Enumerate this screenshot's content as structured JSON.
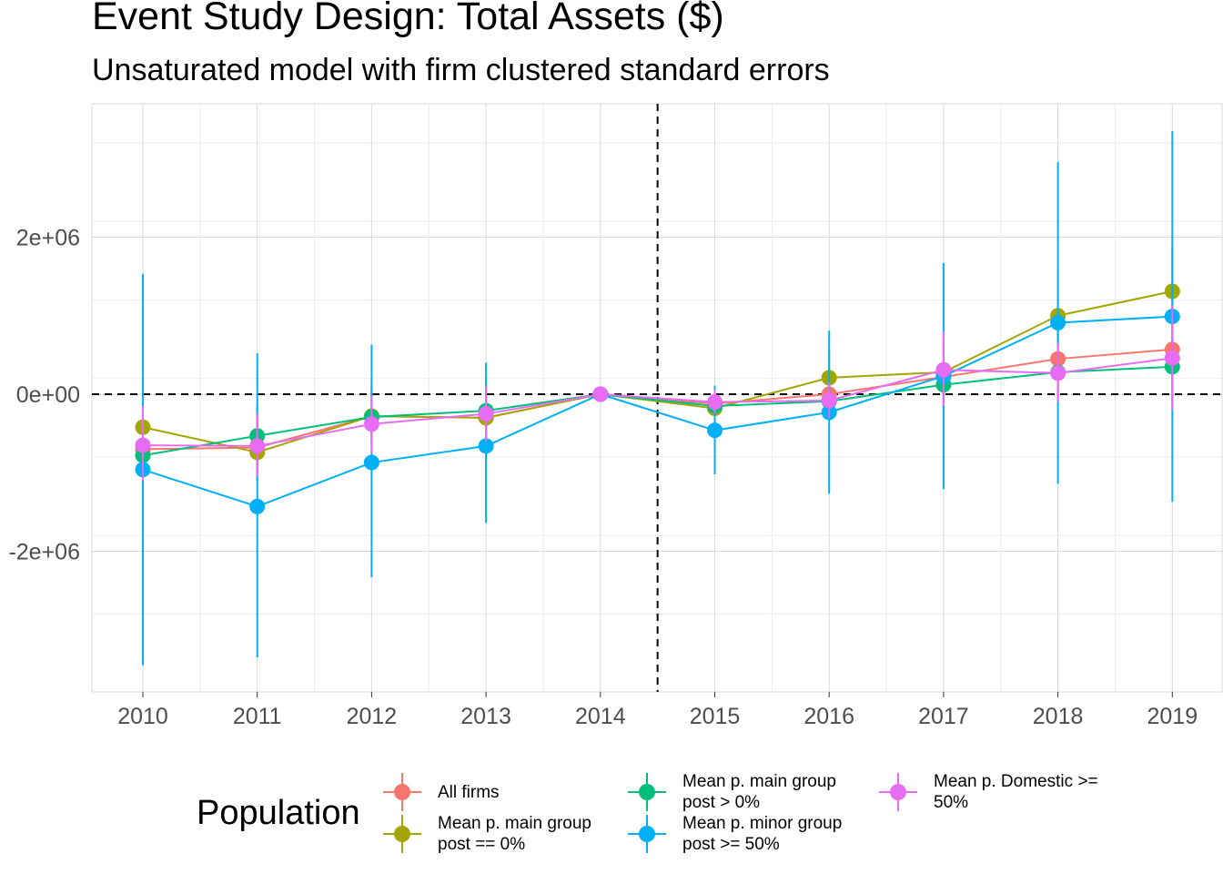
{
  "chart_data": {
    "type": "line",
    "title": "Event Study Design: Total Assets ($)",
    "subtitle": "Unsaturated model with firm clustered standard errors",
    "xlabel": "",
    "ylabel": "",
    "categories": [
      "2010",
      "2011",
      "2012",
      "2013",
      "2014",
      "2015",
      "2016",
      "2017",
      "2018",
      "2019"
    ],
    "y_ticks": [
      {
        "value": 2000000,
        "label": "2e+06"
      },
      {
        "value": 0,
        "label": "0e+00"
      },
      {
        "value": -2000000,
        "label": "-2e+06"
      }
    ],
    "ylim": [
      -3800000,
      3700000
    ],
    "reference_lines": {
      "horizontal_y": 0,
      "vertical_between": [
        "2014",
        "2015"
      ]
    },
    "grid": true,
    "legend_position": "bottom",
    "legend_title": "Population",
    "series": [
      {
        "name": "All firms",
        "color": "#F8766D",
        "values": [
          -700000,
          -680000,
          -280000,
          -300000,
          0,
          -120000,
          0,
          220000,
          450000,
          570000
        ],
        "ci_low": [
          -1100000,
          -1000000,
          -650000,
          -650000,
          0,
          -300000,
          -200000,
          -100000,
          100000,
          150000
        ],
        "ci_high": [
          -300000,
          -350000,
          100000,
          50000,
          0,
          60000,
          200000,
          550000,
          800000,
          1000000
        ]
      },
      {
        "name": "Mean p. main group post == 0%",
        "color": "#A3A500",
        "values": [
          -420000,
          -740000,
          -280000,
          -300000,
          0,
          -180000,
          210000,
          280000,
          1000000,
          1310000
        ],
        "ci_low": [
          -800000,
          -1100000,
          -700000,
          -700000,
          0,
          -450000,
          -150000,
          -150000,
          450000,
          700000
        ],
        "ci_high": [
          -50000,
          -380000,
          150000,
          100000,
          0,
          100000,
          570000,
          700000,
          1550000,
          1900000
        ]
      },
      {
        "name": "Mean p. main group post > 0%",
        "color": "#00BF7D",
        "values": [
          -780000,
          -530000,
          -290000,
          -210000,
          0,
          -150000,
          -90000,
          120000,
          280000,
          350000
        ],
        "ci_low": [
          -1150000,
          -900000,
          -650000,
          -550000,
          0,
          -400000,
          -350000,
          -200000,
          -50000,
          -50000
        ],
        "ci_high": [
          -400000,
          -150000,
          80000,
          130000,
          0,
          100000,
          170000,
          450000,
          600000,
          750000
        ]
      },
      {
        "name": "Mean p. minor group post >= 50%",
        "color": "#00B0F6",
        "values": [
          -960000,
          -1430000,
          -870000,
          -660000,
          0,
          -460000,
          -230000,
          230000,
          910000,
          990000
        ],
        "ci_low": [
          -3450000,
          -3350000,
          -2330000,
          -1640000,
          0,
          -1020000,
          -1270000,
          -1210000,
          -1140000,
          -1370000
        ],
        "ci_high": [
          1530000,
          520000,
          630000,
          400000,
          0,
          110000,
          810000,
          1670000,
          2960000,
          3350000
        ]
      },
      {
        "name": "Mean p. Domestic >= 50%",
        "color": "#E76BF3",
        "values": [
          -650000,
          -660000,
          -380000,
          -250000,
          0,
          -100000,
          -80000,
          310000,
          270000,
          460000
        ],
        "ci_low": [
          -1100000,
          -1050000,
          -750000,
          -600000,
          0,
          -250000,
          -300000,
          -150000,
          -100000,
          -200000
        ],
        "ci_high": [
          -150000,
          -250000,
          -20000,
          100000,
          0,
          60000,
          150000,
          800000,
          650000,
          1130000
        ]
      }
    ]
  },
  "legend": {
    "title": "Population",
    "items": [
      {
        "label": "All firms",
        "color": "#F8766D"
      },
      {
        "label": "Mean p. main group\npost == 0%",
        "color": "#A3A500"
      },
      {
        "label": "Mean p. main group\npost > 0%",
        "color": "#00BF7D"
      },
      {
        "label": "Mean p. minor group\npost >= 50%",
        "color": "#00B0F6"
      },
      {
        "label": "Mean p. Domestic >=\n50%",
        "color": "#E76BF3"
      }
    ]
  }
}
